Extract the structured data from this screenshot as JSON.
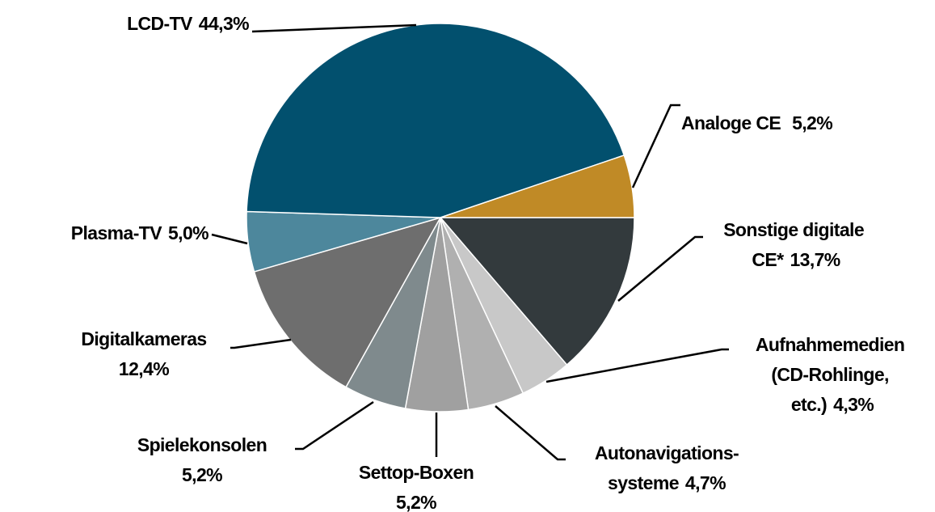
{
  "chart_data": {
    "type": "pie",
    "categories": [
      "Sonstige digitale CE*",
      "Aufnahmemedien (CD-Rohlinge, etc.)",
      "Autonavigations-systeme",
      "Settop-Boxen",
      "Spielekonsolen",
      "Digitalkameras",
      "Plasma-TV",
      "LCD-TV",
      "Analoge CE"
    ],
    "values": [
      13.7,
      4.3,
      4.7,
      5.2,
      5.2,
      12.4,
      5.0,
      44.3,
      5.2
    ],
    "value_labels": [
      "13,7%",
      "4,3%",
      "4,7%",
      "5,2%",
      "5,2%",
      "12,4%",
      "5,0%",
      "44,3%",
      "5,2%"
    ],
    "colors": [
      "#333a3d",
      "#c8c8c8",
      "#b0b0b0",
      "#a0a0a0",
      "#7f8a8d",
      "#6e6e6e",
      "#4d879c",
      "#02506e",
      "#c08a26"
    ]
  }
}
